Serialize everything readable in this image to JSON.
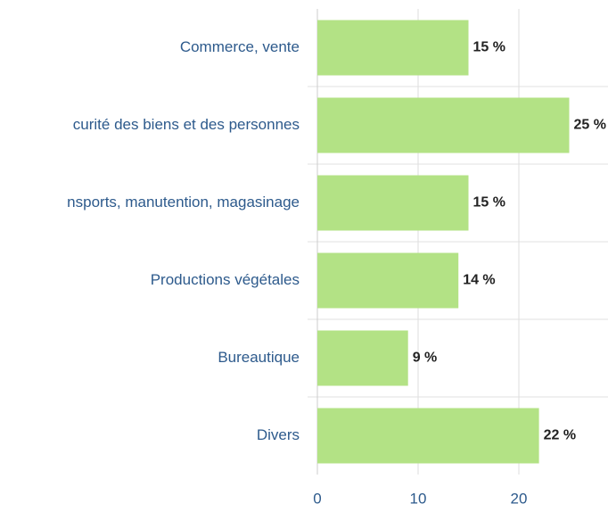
{
  "chart_data": {
    "type": "bar",
    "orientation": "horizontal",
    "categories": [
      "Commerce, vente",
      "curité des biens et des personnes",
      "nsports, manutention, magasinage",
      "Productions végétales",
      "Bureautique",
      "Divers"
    ],
    "values": [
      15,
      25,
      15,
      14,
      9,
      22
    ],
    "value_labels": [
      "15 %",
      "25 %",
      "15 %",
      "14 %",
      "9 %",
      "22 %"
    ],
    "color": "#b3e285",
    "xlim": [
      0,
      30
    ],
    "xticks": [
      0,
      10,
      20
    ],
    "grid": true
  }
}
